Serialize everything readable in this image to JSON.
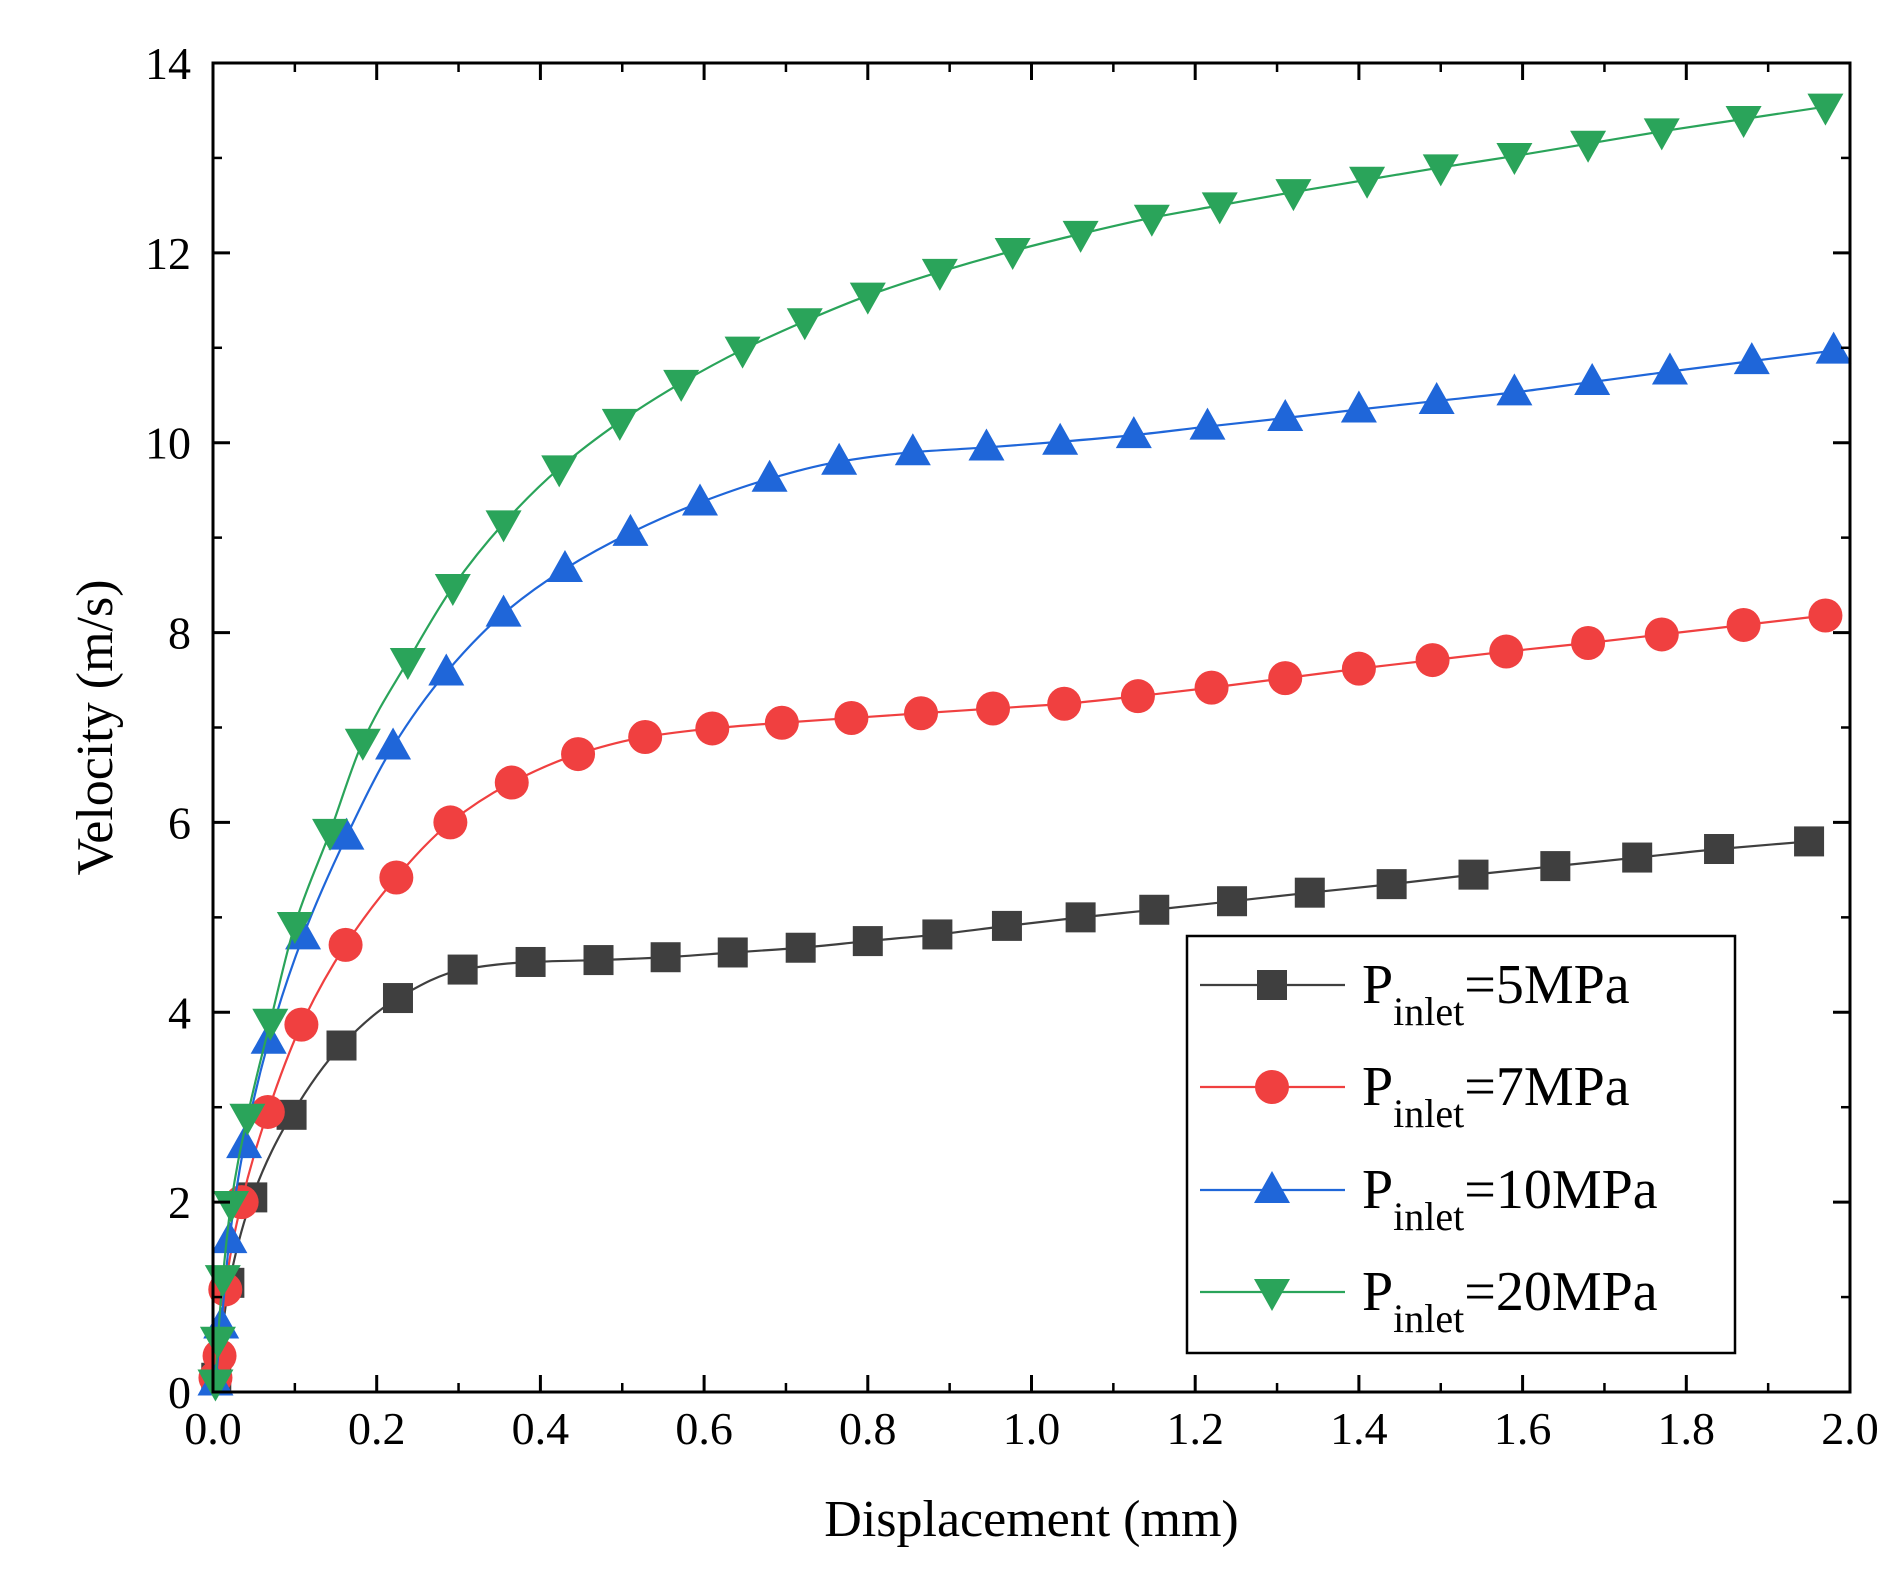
{
  "chart_data": {
    "type": "line",
    "title": "",
    "xlabel": "Displacement (mm)",
    "ylabel": "Velocity (m/s)",
    "xlim": [
      0,
      2.0
    ],
    "ylim": [
      0,
      14
    ],
    "xticks": [
      "0.0",
      "0.2",
      "0.4",
      "0.6",
      "0.8",
      "1.0",
      "1.2",
      "1.4",
      "1.6",
      "1.8",
      "2.0"
    ],
    "yticks": [
      "0",
      "2",
      "4",
      "6",
      "8",
      "10",
      "12",
      "14"
    ],
    "xtick_values": [
      0,
      0.2,
      0.4,
      0.6,
      0.8,
      1.0,
      1.2,
      1.4,
      1.6,
      1.8,
      2.0
    ],
    "ytick_values": [
      0,
      2,
      4,
      6,
      8,
      10,
      12,
      14
    ],
    "grid": false,
    "legend_position": "bottom-right",
    "series": [
      {
        "name": "P_inlet=5MPa",
        "label_main": "P",
        "label_sub": "inlet",
        "label_rest": "=5MPa",
        "color": "#3f3f3f",
        "marker": "square",
        "x": [
          0.004,
          0.02,
          0.048,
          0.096,
          0.157,
          0.226,
          0.305,
          0.388,
          0.471,
          0.553,
          0.635,
          0.718,
          0.8,
          0.885,
          0.97,
          1.06,
          1.15,
          1.245,
          1.34,
          1.44,
          1.54,
          1.64,
          1.74,
          1.84,
          1.95
        ],
        "values": [
          0.15,
          1.15,
          2.05,
          2.92,
          3.65,
          4.15,
          4.45,
          4.53,
          4.55,
          4.58,
          4.63,
          4.68,
          4.75,
          4.82,
          4.91,
          5.0,
          5.08,
          5.17,
          5.26,
          5.35,
          5.45,
          5.54,
          5.63,
          5.72,
          5.8
        ]
      },
      {
        "name": "P_inlet=7MPa",
        "label_main": "P",
        "label_sub": "inlet",
        "label_rest": "=7MPa",
        "color": "#f04040",
        "marker": "circle",
        "x": [
          0.003,
          0.008,
          0.015,
          0.035,
          0.067,
          0.108,
          0.162,
          0.224,
          0.29,
          0.365,
          0.446,
          0.528,
          0.61,
          0.695,
          0.78,
          0.865,
          0.953,
          1.04,
          1.13,
          1.22,
          1.31,
          1.4,
          1.49,
          1.58,
          1.68,
          1.77,
          1.87,
          1.97
        ],
        "values": [
          0.15,
          0.38,
          1.08,
          2.0,
          2.95,
          3.87,
          4.71,
          5.42,
          6.0,
          6.42,
          6.72,
          6.9,
          6.99,
          7.05,
          7.1,
          7.15,
          7.2,
          7.25,
          7.33,
          7.42,
          7.52,
          7.62,
          7.71,
          7.8,
          7.89,
          7.98,
          8.08,
          8.18
        ]
      },
      {
        "name": "P_inlet=10MPa",
        "label_main": "P",
        "label_sub": "inlet",
        "label_rest": "=10MPa",
        "color": "#1f66d9",
        "marker": "triangle-up",
        "x": [
          0.003,
          0.01,
          0.02,
          0.038,
          0.068,
          0.11,
          0.163,
          0.22,
          0.285,
          0.355,
          0.43,
          0.51,
          0.595,
          0.68,
          0.765,
          0.855,
          0.945,
          1.035,
          1.125,
          1.215,
          1.31,
          1.4,
          1.495,
          1.59,
          1.685,
          1.78,
          1.88,
          1.98
        ],
        "values": [
          0.1,
          0.7,
          1.6,
          2.6,
          3.7,
          4.8,
          5.85,
          6.8,
          7.58,
          8.2,
          8.67,
          9.05,
          9.37,
          9.62,
          9.8,
          9.9,
          9.95,
          10.01,
          10.08,
          10.17,
          10.26,
          10.35,
          10.44,
          10.53,
          10.64,
          10.75,
          10.86,
          10.97
        ]
      },
      {
        "name": "P_inlet=20MPa",
        "label_main": "P",
        "label_sub": "inlet",
        "label_rest": "=20MPa",
        "color": "#2aa45a",
        "marker": "triangle-down",
        "x": [
          0.003,
          0.006,
          0.012,
          0.022,
          0.042,
          0.07,
          0.1,
          0.143,
          0.183,
          0.238,
          0.293,
          0.355,
          0.423,
          0.497,
          0.572,
          0.647,
          0.723,
          0.8,
          0.888,
          0.977,
          1.06,
          1.147,
          1.23,
          1.32,
          1.41,
          1.5,
          1.59,
          1.68,
          1.77,
          1.87,
          1.97
        ],
        "values": [
          0.1,
          0.55,
          1.2,
          1.98,
          2.9,
          3.9,
          4.92,
          5.9,
          6.85,
          7.7,
          8.48,
          9.15,
          9.73,
          10.22,
          10.63,
          10.98,
          11.28,
          11.55,
          11.8,
          12.02,
          12.2,
          12.37,
          12.5,
          12.64,
          12.77,
          12.9,
          13.02,
          13.15,
          13.28,
          13.41,
          13.54
        ]
      }
    ]
  }
}
